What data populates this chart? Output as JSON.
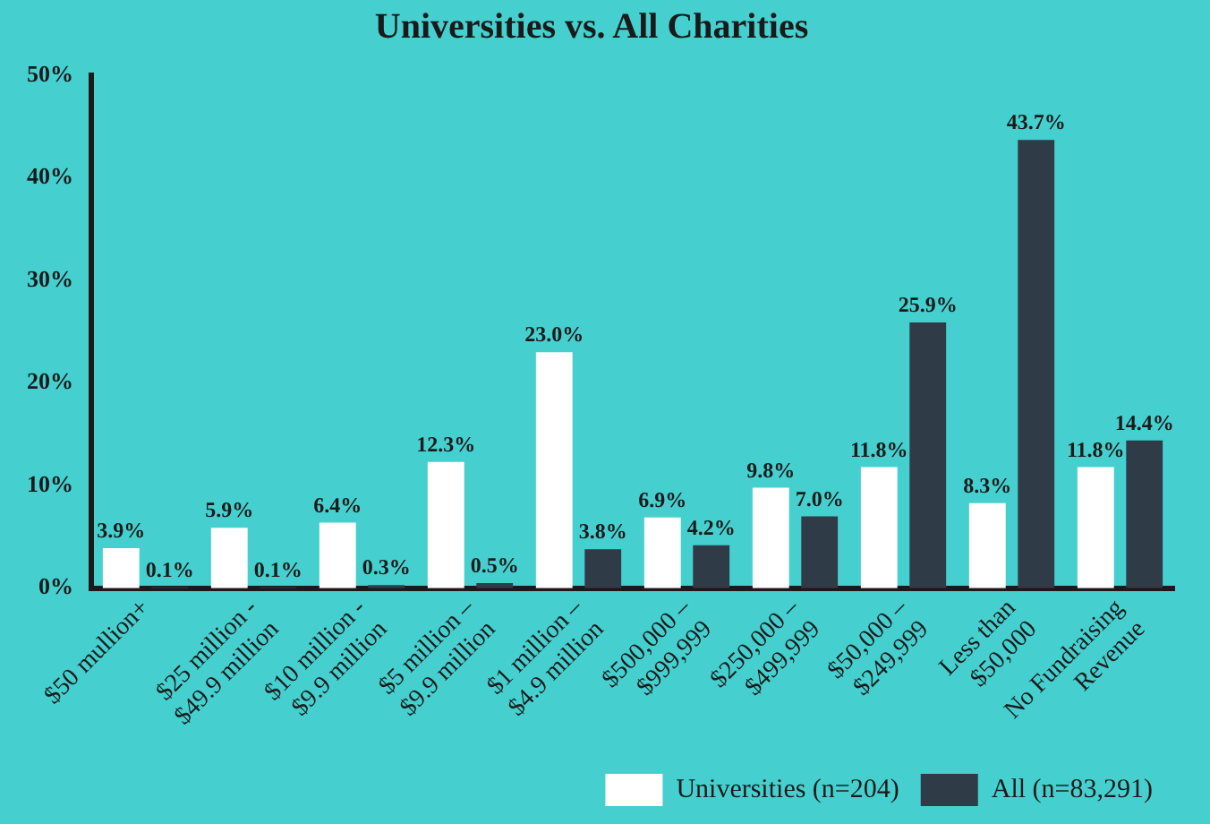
{
  "chart_data": {
    "type": "bar",
    "title": "Universities vs. All Charities",
    "categories": [
      "$50 mullion+",
      "$25 million -\n$49.9 million",
      "$10 million -\n$9.9 million",
      "$5 million –\n$9.9 million",
      "$1 million –\n$4.9 million",
      "$500,000 –\n$999,999",
      "$250,000 –\n$499,999",
      "$50,000 –\n$249,999",
      "Less than\n$50,000",
      "No Fundraising\nRevenue"
    ],
    "series": [
      {
        "name": "Universities (n=204)",
        "color": "#ffffff",
        "values": [
          3.9,
          5.9,
          6.4,
          12.3,
          23.0,
          6.9,
          9.8,
          11.8,
          8.3,
          11.8
        ],
        "value_labels": [
          "3.9%",
          "5.9%",
          "6.4%",
          "12.3%",
          "23.0%",
          "6.9%",
          "9.8%",
          "11.8%",
          "8.3%",
          "11.8%"
        ]
      },
      {
        "name": "All (n=83,291)",
        "color": "#2f3c47",
        "values": [
          0.1,
          0.1,
          0.3,
          0.5,
          3.8,
          4.2,
          7.0,
          25.9,
          43.7,
          14.4
        ],
        "value_labels": [
          "0.1%",
          "0.1%",
          "0.3%",
          "0.5%",
          "3.8%",
          "4.2%",
          "7.0%",
          "25.9%",
          "43.7%",
          "14.4%"
        ]
      }
    ],
    "ylim": [
      0,
      50
    ],
    "yticks": [
      {
        "value": 0,
        "label": "0%"
      },
      {
        "value": 10,
        "label": "10%"
      },
      {
        "value": 20,
        "label": "20%"
      },
      {
        "value": 30,
        "label": "30%"
      },
      {
        "value": 40,
        "label": "40%"
      },
      {
        "value": 50,
        "label": "50%"
      }
    ],
    "grid": false,
    "legend": "bottom"
  }
}
